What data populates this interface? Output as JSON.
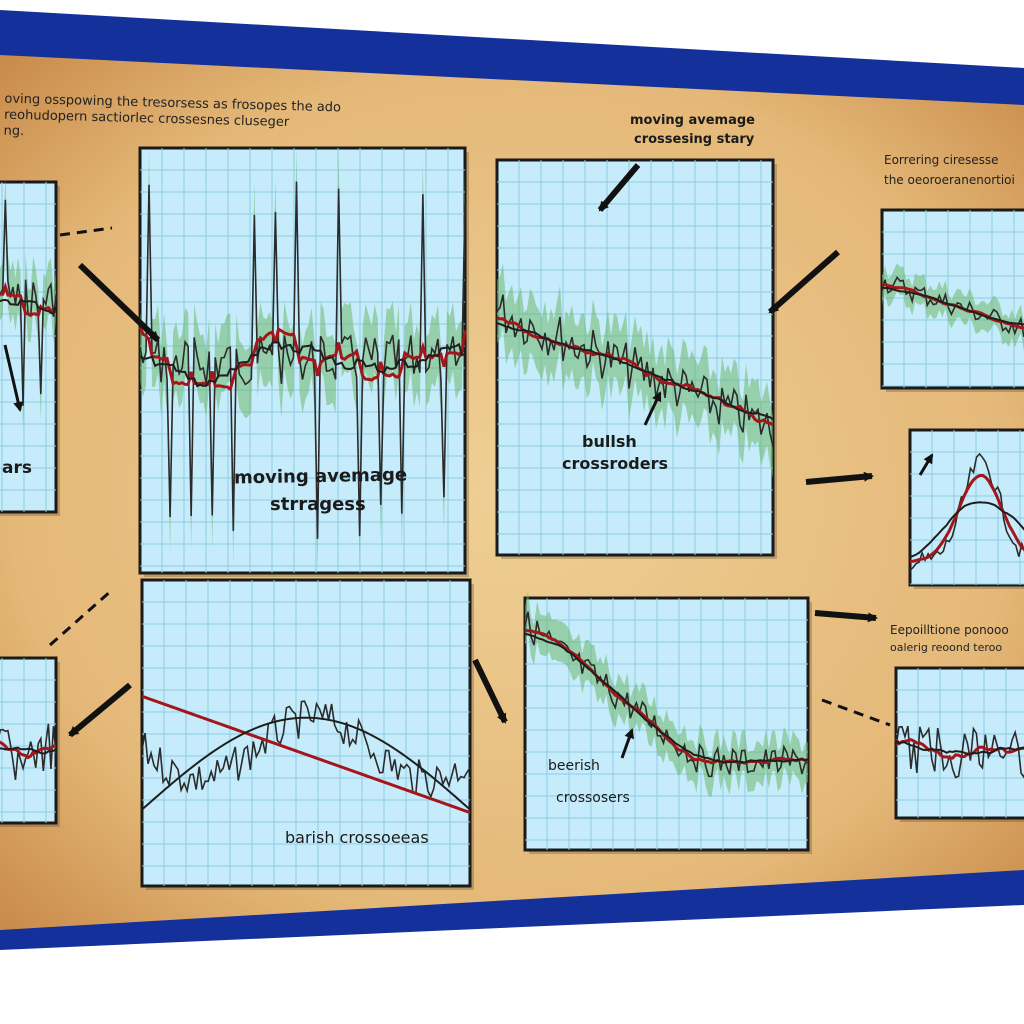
{
  "board": {
    "frame_color": "#14309a",
    "paper_color": "#e4b878",
    "paper_edge_color": "#c98b4a"
  },
  "intro_caption": {
    "line1": "oving osspowing the tresorsess as frosopes the ado",
    "line2": "reohudopern sactiorlec crossesnes cluseger",
    "line3": "ng."
  },
  "panels": [
    {
      "id": "top-left-partial",
      "labels": [
        "ars"
      ]
    },
    {
      "id": "top-center",
      "labels": [
        "moving avemage",
        "strragess"
      ]
    },
    {
      "id": "top-right",
      "top_labels": [
        "moving avemage",
        "crossesing stary"
      ],
      "labels": [
        "bullsh",
        "crossroders"
      ]
    },
    {
      "id": "far-right-top",
      "top_labels": [
        "Eorrering ciresesse",
        "the oeoroeranenortioi"
      ]
    },
    {
      "id": "far-right-middle"
    },
    {
      "id": "bottom-left-partial"
    },
    {
      "id": "bottom-center",
      "labels": [
        "barish crossoeeas"
      ]
    },
    {
      "id": "bottom-right",
      "labels": [
        "beerish",
        "crossosers"
      ]
    },
    {
      "id": "far-right-bottom",
      "top_labels": [
        "Eepoilltione ponooo",
        "oalerig reoond teroo"
      ]
    }
  ],
  "colors": {
    "chart_bg": "#c6ecfb",
    "grid": "#8fcbe6",
    "price_line": "#2b2b2b",
    "ma_red": "#a3161a",
    "ma_dark": "#1e1e1e",
    "band_green": "#6db86a",
    "arrow": "#111111"
  },
  "icons": [
    "arrow-icon"
  ]
}
